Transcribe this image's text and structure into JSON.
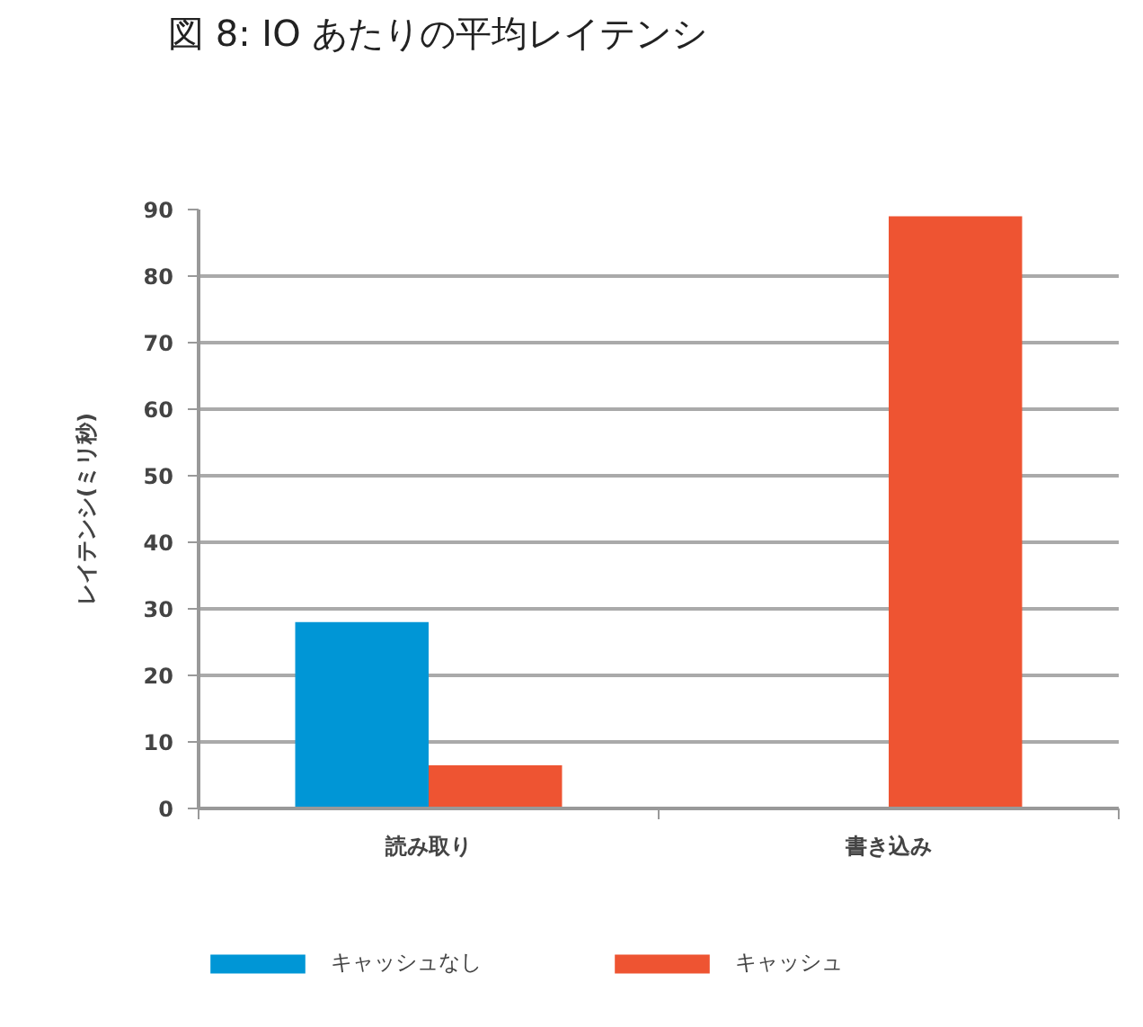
{
  "chart_data": {
    "type": "bar",
    "title": "図 8: IO あたりの平均レイテンシ",
    "ylabel": "レイテンシ(ミリ秒)",
    "categories": [
      "読み取り",
      "書き込み"
    ],
    "series": [
      {
        "name": "キャッシュなし",
        "color": "#0096d6",
        "values": [
          28,
          null
        ]
      },
      {
        "name": "キャッシュ",
        "color": "#ee5432",
        "values": [
          6.5,
          89
        ]
      }
    ],
    "ylim": [
      0,
      90
    ],
    "yticks": [
      0,
      10,
      20,
      30,
      40,
      50,
      60,
      70,
      80,
      90
    ],
    "grid": "y",
    "legend": "bottom"
  }
}
